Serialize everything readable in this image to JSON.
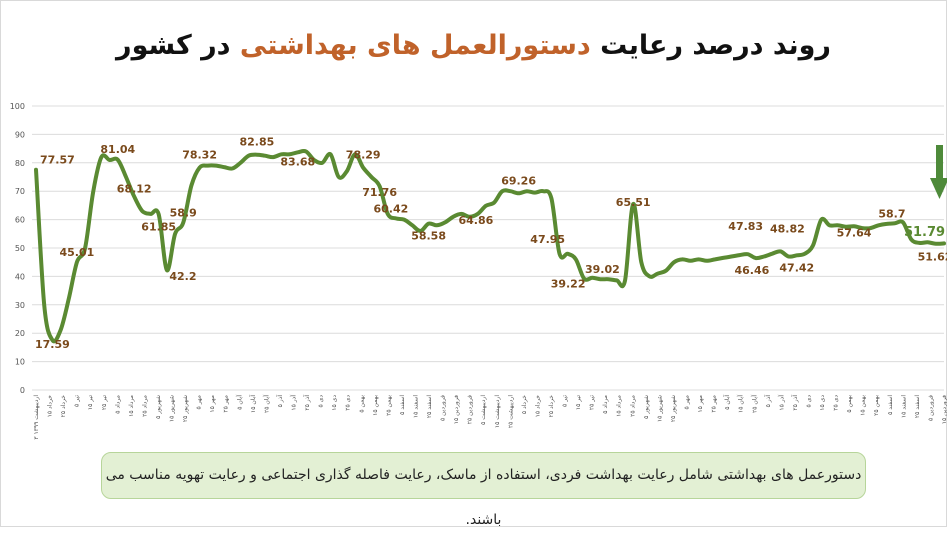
{
  "title": {
    "part1": "روند درصد رعایت ",
    "highlight": "دستورالعمل های بهداشتی",
    "part2": " در کشور"
  },
  "note": "دستورعمل های بهداشتی شامل رعایت بهداشت فردی، استفاده از ماسک، رعایت فاصله گذاری اجتماعی و رعایت تهویه مناسب می باشند.",
  "colors": {
    "line": "#5a8a32",
    "label": "#7a4a1c",
    "last_label": "#5a8a32",
    "arrow": "#4e8a3a",
    "grid": "#dcdcdc",
    "axis_text": "#555555"
  },
  "chart_data": {
    "type": "line",
    "title": "روند درصد رعایت دستورالعمل های بهداشتی در کشور",
    "xlabel": "",
    "ylabel": "",
    "ylim": [
      0,
      100
    ],
    "yticks": [
      0,
      10,
      20,
      30,
      40,
      50,
      60,
      70,
      80,
      90,
      100
    ],
    "grid": true,
    "x_tick_labels": [
      "۳ اردیبهشت ۱۳۹۹",
      "۱۵ خرداد",
      "۲۵ خرداد",
      "۵ تیر",
      "۱۵ تیر",
      "۲۵ تیر",
      "۵ مرداد",
      "۱۵ مرداد",
      "۲۵ مرداد",
      "۵ شهریور",
      "۱۵ شهریور",
      "۲۵ شهریور",
      "۵ مهر",
      "۱۵ مهر",
      "۲۵ مهر",
      "۵ آبان",
      "۱۵ آبان",
      "۲۵ آبان",
      "۵ آذر",
      "۱۵ آذر",
      "۲۵ آذر",
      "۵ دی",
      "۱۵ دی",
      "۲۵ دی",
      "۵ بهمن",
      "۱۵ بهمن",
      "۲۵ بهمن",
      "۵ اسفند",
      "۱۵ اسفند",
      "۲۵ اسفند",
      "۵ فروردین",
      "۱۵ فروردین",
      "۲۵ فروردین",
      "۵ اردیبهشت",
      "۱۵ اردیبهشت",
      "۲۵ اردیبهشت",
      "۵ خرداد",
      "۱۵ خرداد",
      "۲۵ خرداد",
      "۵ تیر",
      "۱۵ تیر",
      "۲۵ تیر",
      "۵ مرداد",
      "۱۵ مرداد",
      "۲۵ مرداد",
      "۵ شهریور",
      "۱۵ شهریور",
      "۲۵ شهریور",
      "۵ مهر",
      "۱۵ مهر",
      "۲۵ مهر",
      "۵ آبان",
      "۱۵ آبان",
      "۲۵ آبان",
      "۵ آذر",
      "۱۵ آذر",
      "۲۵ آذر",
      "۵ دی",
      "۱۵ دی",
      "۲۵ دی",
      "۵ بهمن",
      "۱۵ بهمن",
      "۲۵ بهمن",
      "۵ اسفند",
      "۱۵ اسفند",
      "۲۵ اسفند",
      "۵ فروردین",
      "۱۵ فروردین"
    ],
    "series": [
      {
        "values": [
          77.57,
          30,
          17.59,
          21,
          32,
          45.01,
          50,
          70,
          82,
          81,
          81.04,
          75,
          68.12,
          63,
          62,
          61.85,
          42.2,
          55,
          58.9,
          72,
          78.32,
          79,
          79,
          78.5,
          78,
          80,
          82.5,
          82.85,
          82.5,
          82,
          83,
          83,
          83.68,
          84,
          81,
          80,
          83,
          75,
          77,
          83,
          78.29,
          75,
          71.76,
          62,
          60.42,
          60,
          58,
          56,
          58.58,
          58,
          59,
          61,
          62,
          61,
          62,
          64.86,
          66,
          70,
          70,
          69.26,
          70,
          69.5,
          70,
          67.5,
          48,
          47.95,
          46,
          39.22,
          39.5,
          39.02,
          39,
          38.6,
          38.5,
          65.51,
          45,
          40,
          41,
          42,
          45,
          46,
          45.5,
          46,
          45.5,
          46,
          46.5,
          47,
          47.5,
          47.83,
          46.46,
          47,
          48,
          48.82,
          47,
          47.42,
          48,
          51,
          60,
          58,
          58,
          57.5,
          57.64,
          57,
          57,
          58,
          58.5,
          58.7,
          59,
          53,
          51.79,
          52,
          51.5,
          51.62
        ]
      }
    ],
    "data_labels": [
      {
        "index": 0,
        "text": "77.57"
      },
      {
        "index": 2,
        "text": "17.59"
      },
      {
        "index": 5,
        "text": "45.01"
      },
      {
        "index": 10,
        "text": "81.04"
      },
      {
        "index": 12,
        "text": "68.12"
      },
      {
        "index": 15,
        "text": "61.85"
      },
      {
        "index": 16,
        "text": "42.2"
      },
      {
        "index": 18,
        "text": "58.9"
      },
      {
        "index": 20,
        "text": "78.32"
      },
      {
        "index": 27,
        "text": "82.85"
      },
      {
        "index": 32,
        "text": "83.68"
      },
      {
        "index": 40,
        "text": "78.29"
      },
      {
        "index": 42,
        "text": "71.76"
      },
      {
        "index": 44,
        "text": "60.42"
      },
      {
        "index": 48,
        "text": "58.58"
      },
      {
        "index": 55,
        "text": "64.86"
      },
      {
        "index": 59,
        "text": "69.26"
      },
      {
        "index": 65,
        "text": "47.95"
      },
      {
        "index": 67,
        "text": "39.22"
      },
      {
        "index": 69,
        "text": "39.02"
      },
      {
        "index": 73,
        "text": "65.51"
      },
      {
        "index": 87,
        "text": "47.83"
      },
      {
        "index": 88,
        "text": "46.46"
      },
      {
        "index": 91,
        "text": "48.82"
      },
      {
        "index": 93,
        "text": "47.42"
      },
      {
        "index": 100,
        "text": "57.64"
      },
      {
        "index": 105,
        "text": "58.7"
      },
      {
        "index": 108,
        "text": "51.79"
      },
      {
        "index": 111,
        "text": "51.62"
      }
    ],
    "annotation": "down-arrow marking the latest value"
  }
}
